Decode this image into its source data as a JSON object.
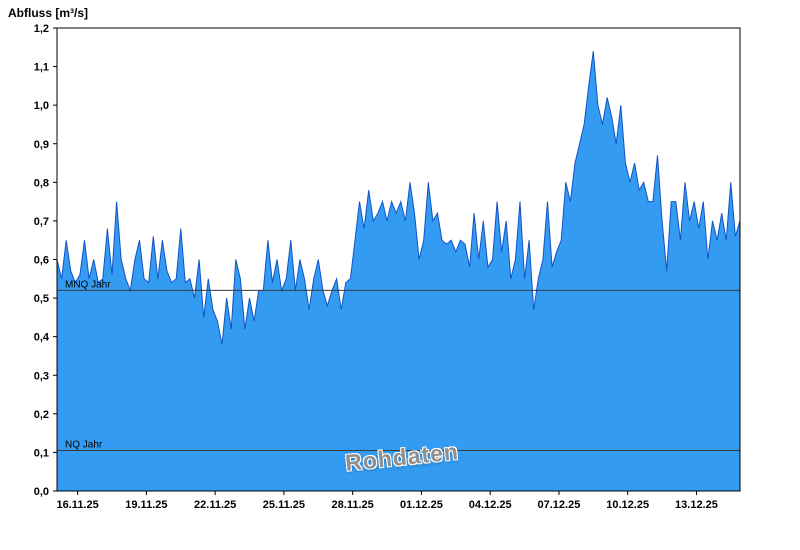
{
  "chart_data": {
    "type": "area",
    "title": "Abfluss [m³/s]",
    "watermark": "Rohdaten",
    "ylabel": "Abfluss [m³/s]",
    "ylim": [
      0,
      1.2
    ],
    "y_tick_labels": [
      "0,0",
      "0,1",
      "0,2",
      "0,3",
      "0,4",
      "0,5",
      "0,6",
      "0,7",
      "0,8",
      "0,9",
      "1,0",
      "1,1",
      "1,2"
    ],
    "y_tick_values": [
      0,
      0.1,
      0.2,
      0.3,
      0.4,
      0.5,
      0.6,
      0.7,
      0.8,
      0.9,
      1.0,
      1.1,
      1.2
    ],
    "x_tick_labels": [
      "16.11.25",
      "19.11.25",
      "22.11.25",
      "25.11.25",
      "28.11.25",
      "01.12.25",
      "04.12.25",
      "07.12.25",
      "10.12.25",
      "13.12.25"
    ],
    "x_tick_days": [
      0,
      3,
      6,
      9,
      12,
      15,
      18,
      21,
      24,
      27
    ],
    "x_range_days": [
      0,
      29.8
    ],
    "sample_interval_days": 0.2,
    "values": [
      0.6,
      0.55,
      0.65,
      0.57,
      0.54,
      0.56,
      0.65,
      0.55,
      0.6,
      0.54,
      0.55,
      0.68,
      0.56,
      0.75,
      0.6,
      0.55,
      0.52,
      0.6,
      0.65,
      0.55,
      0.54,
      0.66,
      0.55,
      0.65,
      0.57,
      0.54,
      0.55,
      0.68,
      0.54,
      0.55,
      0.5,
      0.6,
      0.45,
      0.55,
      0.47,
      0.44,
      0.38,
      0.5,
      0.42,
      0.6,
      0.55,
      0.42,
      0.5,
      0.44,
      0.52,
      0.52,
      0.65,
      0.54,
      0.6,
      0.52,
      0.55,
      0.65,
      0.52,
      0.6,
      0.55,
      0.47,
      0.55,
      0.6,
      0.52,
      0.48,
      0.52,
      0.55,
      0.47,
      0.54,
      0.55,
      0.65,
      0.75,
      0.68,
      0.78,
      0.7,
      0.72,
      0.75,
      0.7,
      0.75,
      0.72,
      0.75,
      0.7,
      0.8,
      0.72,
      0.6,
      0.65,
      0.8,
      0.7,
      0.72,
      0.65,
      0.64,
      0.65,
      0.62,
      0.65,
      0.64,
      0.58,
      0.72,
      0.6,
      0.7,
      0.58,
      0.6,
      0.75,
      0.62,
      0.7,
      0.55,
      0.6,
      0.75,
      0.55,
      0.65,
      0.47,
      0.55,
      0.6,
      0.75,
      0.58,
      0.62,
      0.65,
      0.8,
      0.75,
      0.85,
      0.9,
      0.95,
      1.05,
      1.14,
      1.0,
      0.95,
      1.02,
      0.97,
      0.9,
      1.0,
      0.85,
      0.8,
      0.85,
      0.78,
      0.8,
      0.75,
      0.75,
      0.87,
      0.7,
      0.57,
      0.75,
      0.75,
      0.65,
      0.8,
      0.7,
      0.75,
      0.68,
      0.75,
      0.6,
      0.7,
      0.65,
      0.72,
      0.65,
      0.8,
      0.66,
      0.7
    ],
    "reference_lines": [
      {
        "label": "MNQ Jahr",
        "value": 0.52
      },
      {
        "label": "NQ Jahr",
        "value": 0.105
      }
    ],
    "legend": "none",
    "grid": "off",
    "colors": {
      "fill": "#339cf2",
      "line": "#1353c4",
      "reference": "#3a3a3a",
      "frame": "#000000",
      "text": "#000000"
    }
  }
}
